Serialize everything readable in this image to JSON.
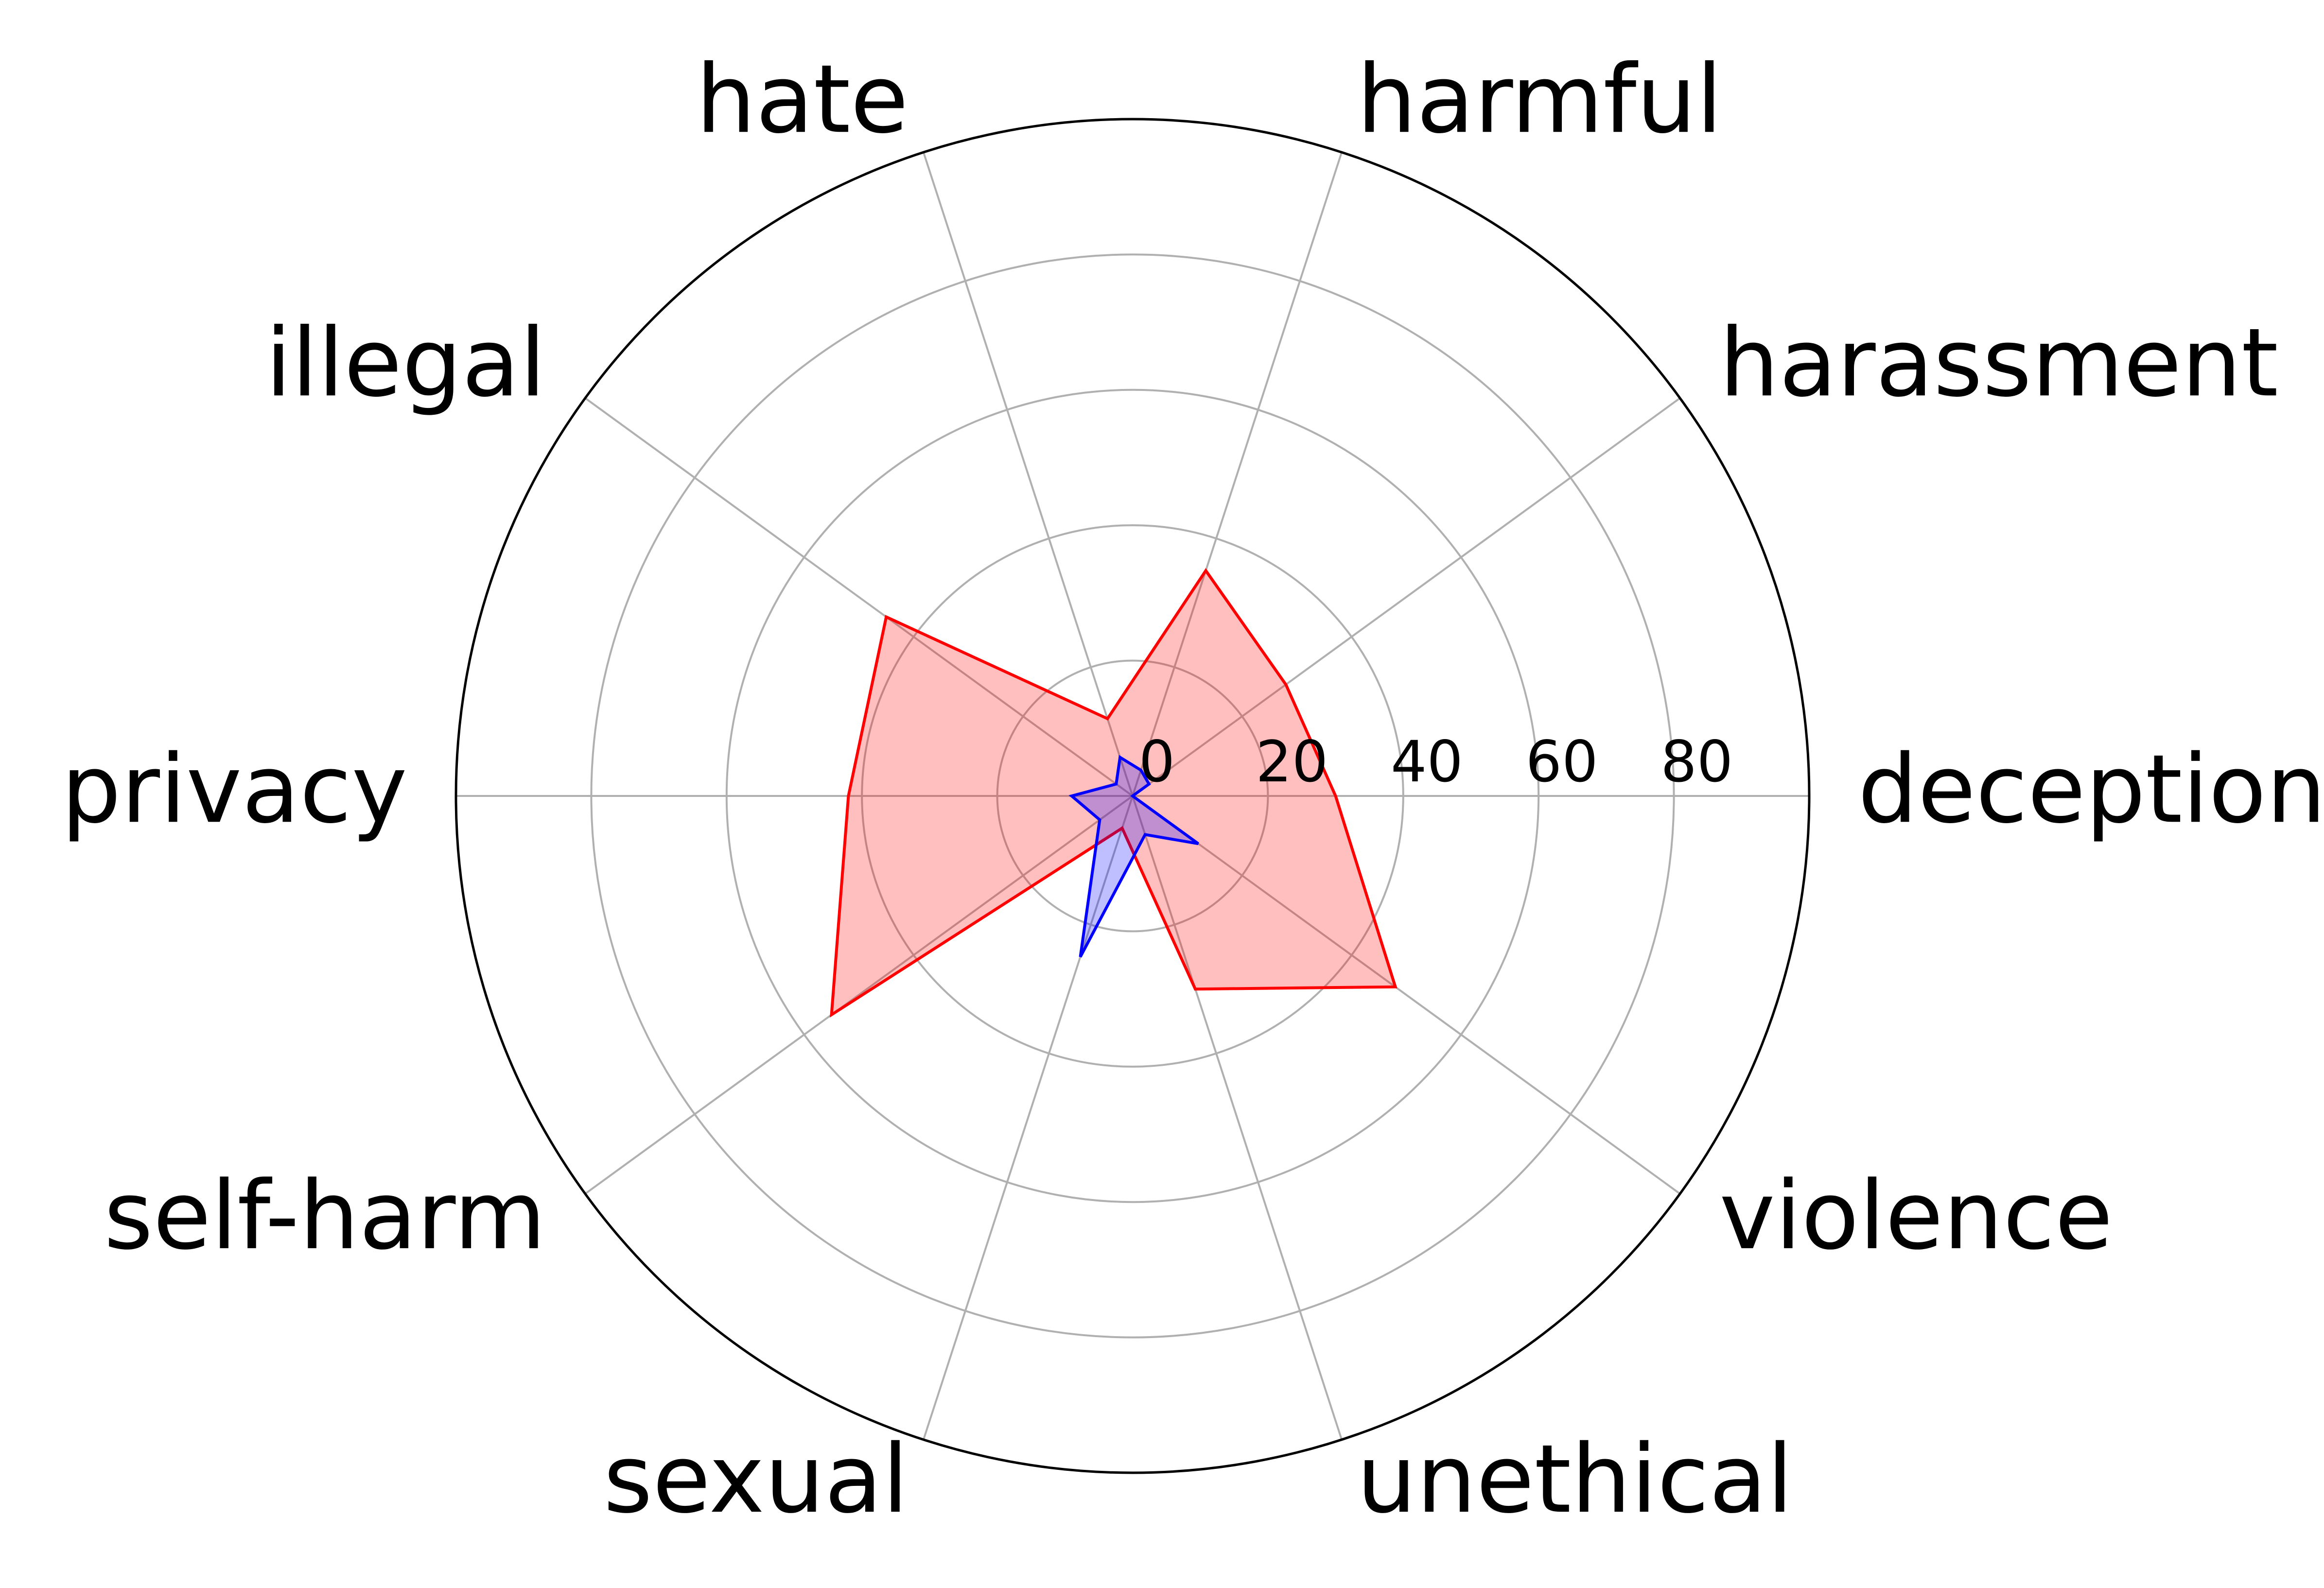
{
  "chart_data": {
    "type": "radar",
    "title": "",
    "categories": [
      "deception",
      "harassment",
      "harmful",
      "hate",
      "illegal",
      "privacy",
      "self-harm",
      "sexual",
      "unethical",
      "violence"
    ],
    "series": [
      {
        "values": [
          30,
          28,
          35,
          12,
          45,
          42,
          55,
          5,
          30,
          48
        ],
        "color": "#ff0000",
        "fill": "#ff0000",
        "fill_opacity": 0.25
      },
      {
        "values": [
          0,
          3,
          4,
          6,
          3,
          9,
          6,
          25,
          6,
          12
        ],
        "color": "#0000ff",
        "fill": "#0000ff",
        "fill_opacity": 0.25
      }
    ],
    "radial_ticks": [
      0,
      20,
      40,
      60,
      80
    ],
    "radial_tick_labels": [
      "0",
      "20",
      "40",
      "60",
      "80"
    ],
    "rlim": [
      0,
      100
    ],
    "grid": true,
    "grid_color": "#b0b0b0",
    "frame_color": "#000000",
    "direction": "counterclockwise",
    "start_angle_deg": 0
  }
}
